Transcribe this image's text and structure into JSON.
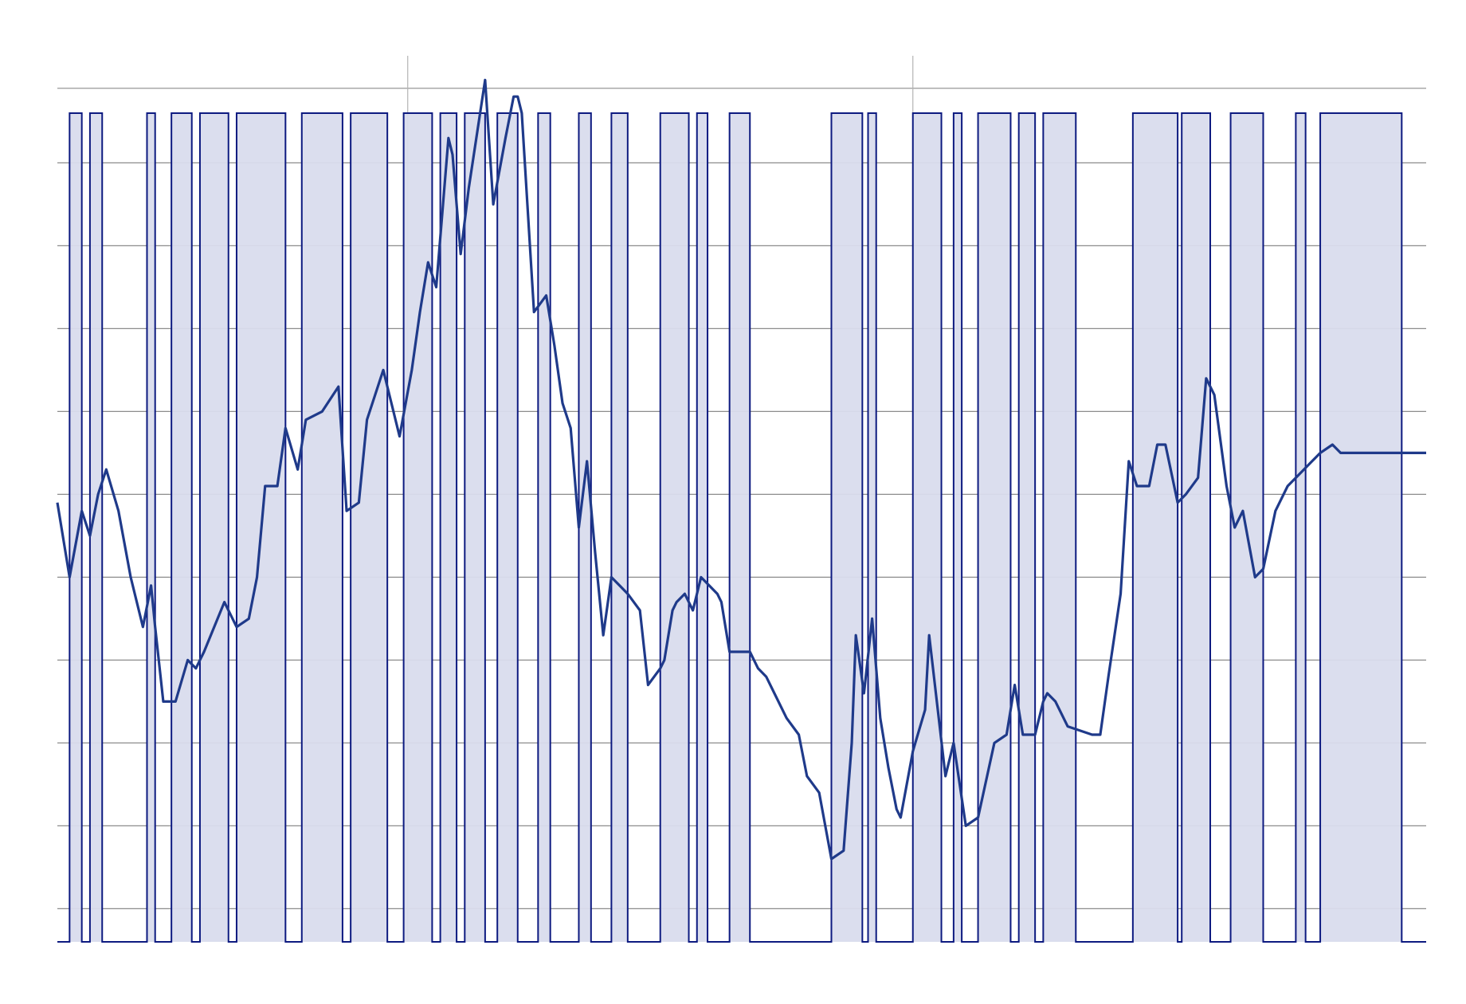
{
  "chart_data": {
    "type": "line",
    "title": "",
    "xlabel": "",
    "ylabel": "",
    "grid": true,
    "legend": "none",
    "xlim": [
      0,
      168
    ],
    "ylim": [
      0,
      1
    ],
    "yticks": [
      0.04,
      0.14,
      0.24,
      0.34,
      0.44,
      0.54,
      0.64,
      0.74,
      0.84,
      0.94
    ],
    "xticks": [
      43,
      105
    ],
    "colors": {
      "line": "#1f3a8a",
      "band_fill": "#d9dced",
      "band_stroke": "#0d1a80",
      "grid": "#8c8c8c",
      "vgrid": "#b4b4b4"
    },
    "series": [
      {
        "values": [
          [
            0,
            0.53
          ],
          [
            1.5,
            0.44
          ],
          [
            3,
            0.52
          ],
          [
            4,
            0.49
          ],
          [
            5,
            0.54
          ],
          [
            6,
            0.57
          ],
          [
            7.5,
            0.52
          ],
          [
            9,
            0.44
          ],
          [
            10.5,
            0.38
          ],
          [
            11.5,
            0.43
          ],
          [
            12,
            0.38
          ],
          [
            13,
            0.29
          ],
          [
            14.5,
            0.29
          ],
          [
            16,
            0.34
          ],
          [
            17,
            0.33
          ],
          [
            18,
            0.35
          ],
          [
            20.5,
            0.41
          ],
          [
            22,
            0.38
          ],
          [
            23.5,
            0.39
          ],
          [
            24.5,
            0.44
          ],
          [
            25.5,
            0.55
          ],
          [
            26,
            0.55
          ],
          [
            27,
            0.55
          ],
          [
            28,
            0.62
          ],
          [
            29.5,
            0.57
          ],
          [
            30.5,
            0.63
          ],
          [
            32.5,
            0.64
          ],
          [
            34.5,
            0.67
          ],
          [
            35.5,
            0.52
          ],
          [
            37,
            0.53
          ],
          [
            38,
            0.63
          ],
          [
            40,
            0.69
          ],
          [
            42,
            0.61
          ],
          [
            43.5,
            0.69
          ],
          [
            44.5,
            0.76
          ],
          [
            45.5,
            0.82
          ],
          [
            46.5,
            0.79
          ],
          [
            48,
            0.97
          ],
          [
            48.5,
            0.95
          ],
          [
            49.5,
            0.83
          ],
          [
            50.5,
            0.91
          ],
          [
            52.5,
            1.04
          ],
          [
            53.5,
            0.89
          ],
          [
            55,
            0.97
          ],
          [
            56,
            1.02
          ],
          [
            56.5,
            1.02
          ],
          [
            57,
            1.0
          ],
          [
            58.5,
            0.76
          ],
          [
            60,
            0.78
          ],
          [
            61,
            0.72
          ],
          [
            62,
            0.65
          ],
          [
            63,
            0.62
          ],
          [
            64,
            0.5
          ],
          [
            65,
            0.58
          ],
          [
            66,
            0.47
          ],
          [
            67,
            0.37
          ],
          [
            68,
            0.44
          ],
          [
            69,
            0.43
          ],
          [
            70,
            0.42
          ],
          [
            71.5,
            0.4
          ],
          [
            72.5,
            0.31
          ],
          [
            74,
            0.33
          ],
          [
            74.5,
            0.34
          ],
          [
            75.5,
            0.4
          ],
          [
            76,
            0.41
          ],
          [
            77,
            0.42
          ],
          [
            78,
            0.4
          ],
          [
            79,
            0.44
          ],
          [
            80,
            0.43
          ],
          [
            81,
            0.42
          ],
          [
            81.5,
            0.41
          ],
          [
            82.5,
            0.35
          ],
          [
            85,
            0.35
          ],
          [
            86,
            0.33
          ],
          [
            87,
            0.32
          ],
          [
            88,
            0.3
          ],
          [
            89.5,
            0.27
          ],
          [
            91,
            0.25
          ],
          [
            92,
            0.2
          ],
          [
            93.5,
            0.18
          ],
          [
            95,
            0.1
          ],
          [
            96.5,
            0.11
          ],
          [
            97.5,
            0.24
          ],
          [
            98,
            0.37
          ],
          [
            99,
            0.3
          ],
          [
            100,
            0.39
          ],
          [
            101,
            0.27
          ],
          [
            102,
            0.21
          ],
          [
            103,
            0.16
          ],
          [
            103.5,
            0.15
          ],
          [
            105,
            0.23
          ],
          [
            106.5,
            0.28
          ],
          [
            107,
            0.37
          ],
          [
            109,
            0.2
          ],
          [
            110,
            0.24
          ],
          [
            111.5,
            0.14
          ],
          [
            113,
            0.15
          ],
          [
            115,
            0.24
          ],
          [
            116.5,
            0.25
          ],
          [
            117.5,
            0.31
          ],
          [
            118.5,
            0.25
          ],
          [
            120,
            0.25
          ],
          [
            121,
            0.29
          ],
          [
            121.5,
            0.3
          ],
          [
            122.5,
            0.29
          ],
          [
            124,
            0.26
          ],
          [
            127,
            0.25
          ],
          [
            128,
            0.25
          ],
          [
            129,
            0.32
          ],
          [
            130.5,
            0.42
          ],
          [
            131.5,
            0.58
          ],
          [
            132.5,
            0.55
          ],
          [
            134,
            0.55
          ],
          [
            135,
            0.6
          ],
          [
            136,
            0.6
          ],
          [
            137.5,
            0.53
          ],
          [
            138.5,
            0.54
          ],
          [
            140,
            0.56
          ],
          [
            141,
            0.68
          ],
          [
            142,
            0.66
          ],
          [
            143.5,
            0.55
          ],
          [
            144.5,
            0.5
          ],
          [
            145.5,
            0.52
          ],
          [
            147,
            0.44
          ],
          [
            148,
            0.45
          ],
          [
            149.5,
            0.52
          ],
          [
            151,
            0.55
          ],
          [
            152,
            0.56
          ],
          [
            154,
            0.58
          ],
          [
            155,
            0.59
          ],
          [
            156.5,
            0.6
          ],
          [
            157.5,
            0.59
          ],
          [
            168,
            0.59
          ]
        ]
      }
    ],
    "bands": [
      [
        1.5,
        3
      ],
      [
        4,
        5.5
      ],
      [
        11,
        12
      ],
      [
        14,
        16.5
      ],
      [
        17.5,
        21
      ],
      [
        22,
        28
      ],
      [
        30,
        35
      ],
      [
        36,
        40.5
      ],
      [
        42.5,
        46
      ],
      [
        47,
        49
      ],
      [
        50,
        52.5
      ],
      [
        54,
        56.5
      ],
      [
        59,
        60.5
      ],
      [
        64,
        65.5
      ],
      [
        68,
        70
      ],
      [
        74,
        77.5
      ],
      [
        78.5,
        79.8
      ],
      [
        82.5,
        85
      ],
      [
        95,
        98.8
      ],
      [
        99.5,
        100.5
      ],
      [
        105,
        108.5
      ],
      [
        110,
        111
      ],
      [
        113,
        117
      ],
      [
        118,
        120
      ],
      [
        121,
        125
      ],
      [
        132,
        137.5
      ],
      [
        138,
        141.5
      ],
      [
        144,
        148
      ],
      [
        152,
        153.2
      ],
      [
        155,
        165
      ]
    ]
  }
}
